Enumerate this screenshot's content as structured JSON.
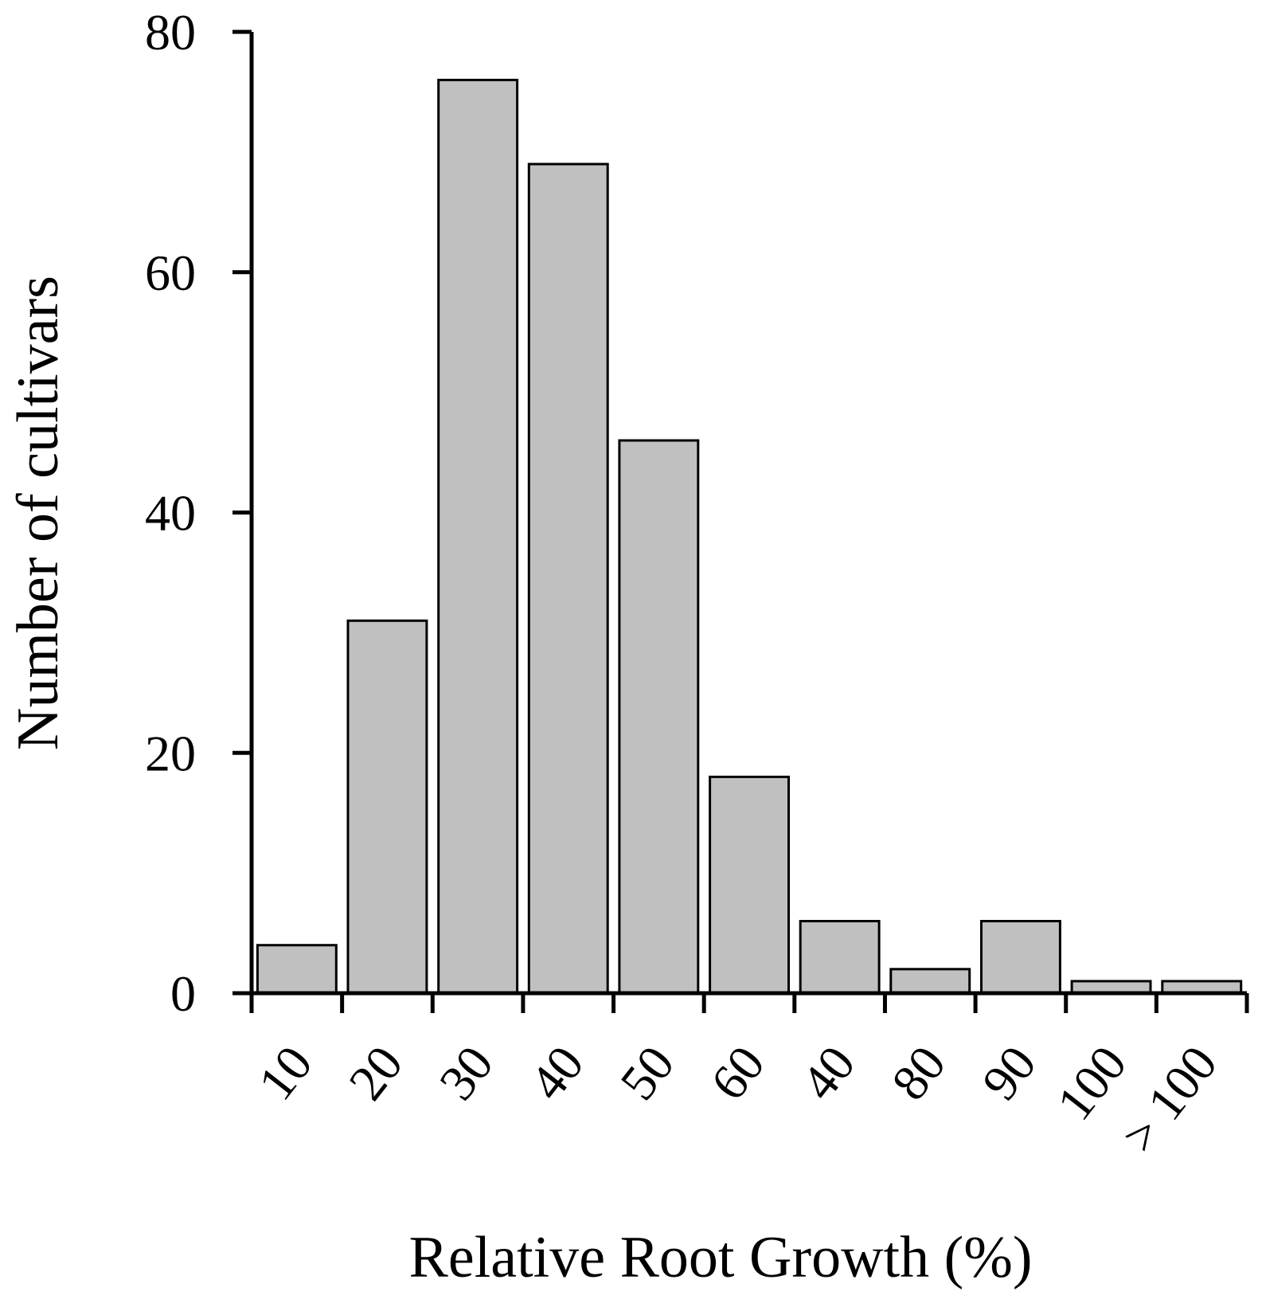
{
  "chart_data": {
    "type": "bar",
    "xlabel": "Relative Root Growth (%)",
    "ylabel": "Number of cultivars",
    "categories": [
      "10",
      "20",
      "30",
      "40",
      "50",
      "60",
      "40",
      "80",
      "90",
      "100",
      "> 100"
    ],
    "values": [
      4,
      31,
      76,
      69,
      46,
      18,
      6,
      2,
      6,
      1,
      1
    ],
    "ylim": [
      0,
      80
    ],
    "yticks": [
      "0",
      "20",
      "40",
      "60",
      "80"
    ],
    "grid": false,
    "legend": "none",
    "colors": {
      "bar_fill": "#c0c0c0",
      "bar_stroke": "#000000",
      "axis": "#000000"
    }
  }
}
